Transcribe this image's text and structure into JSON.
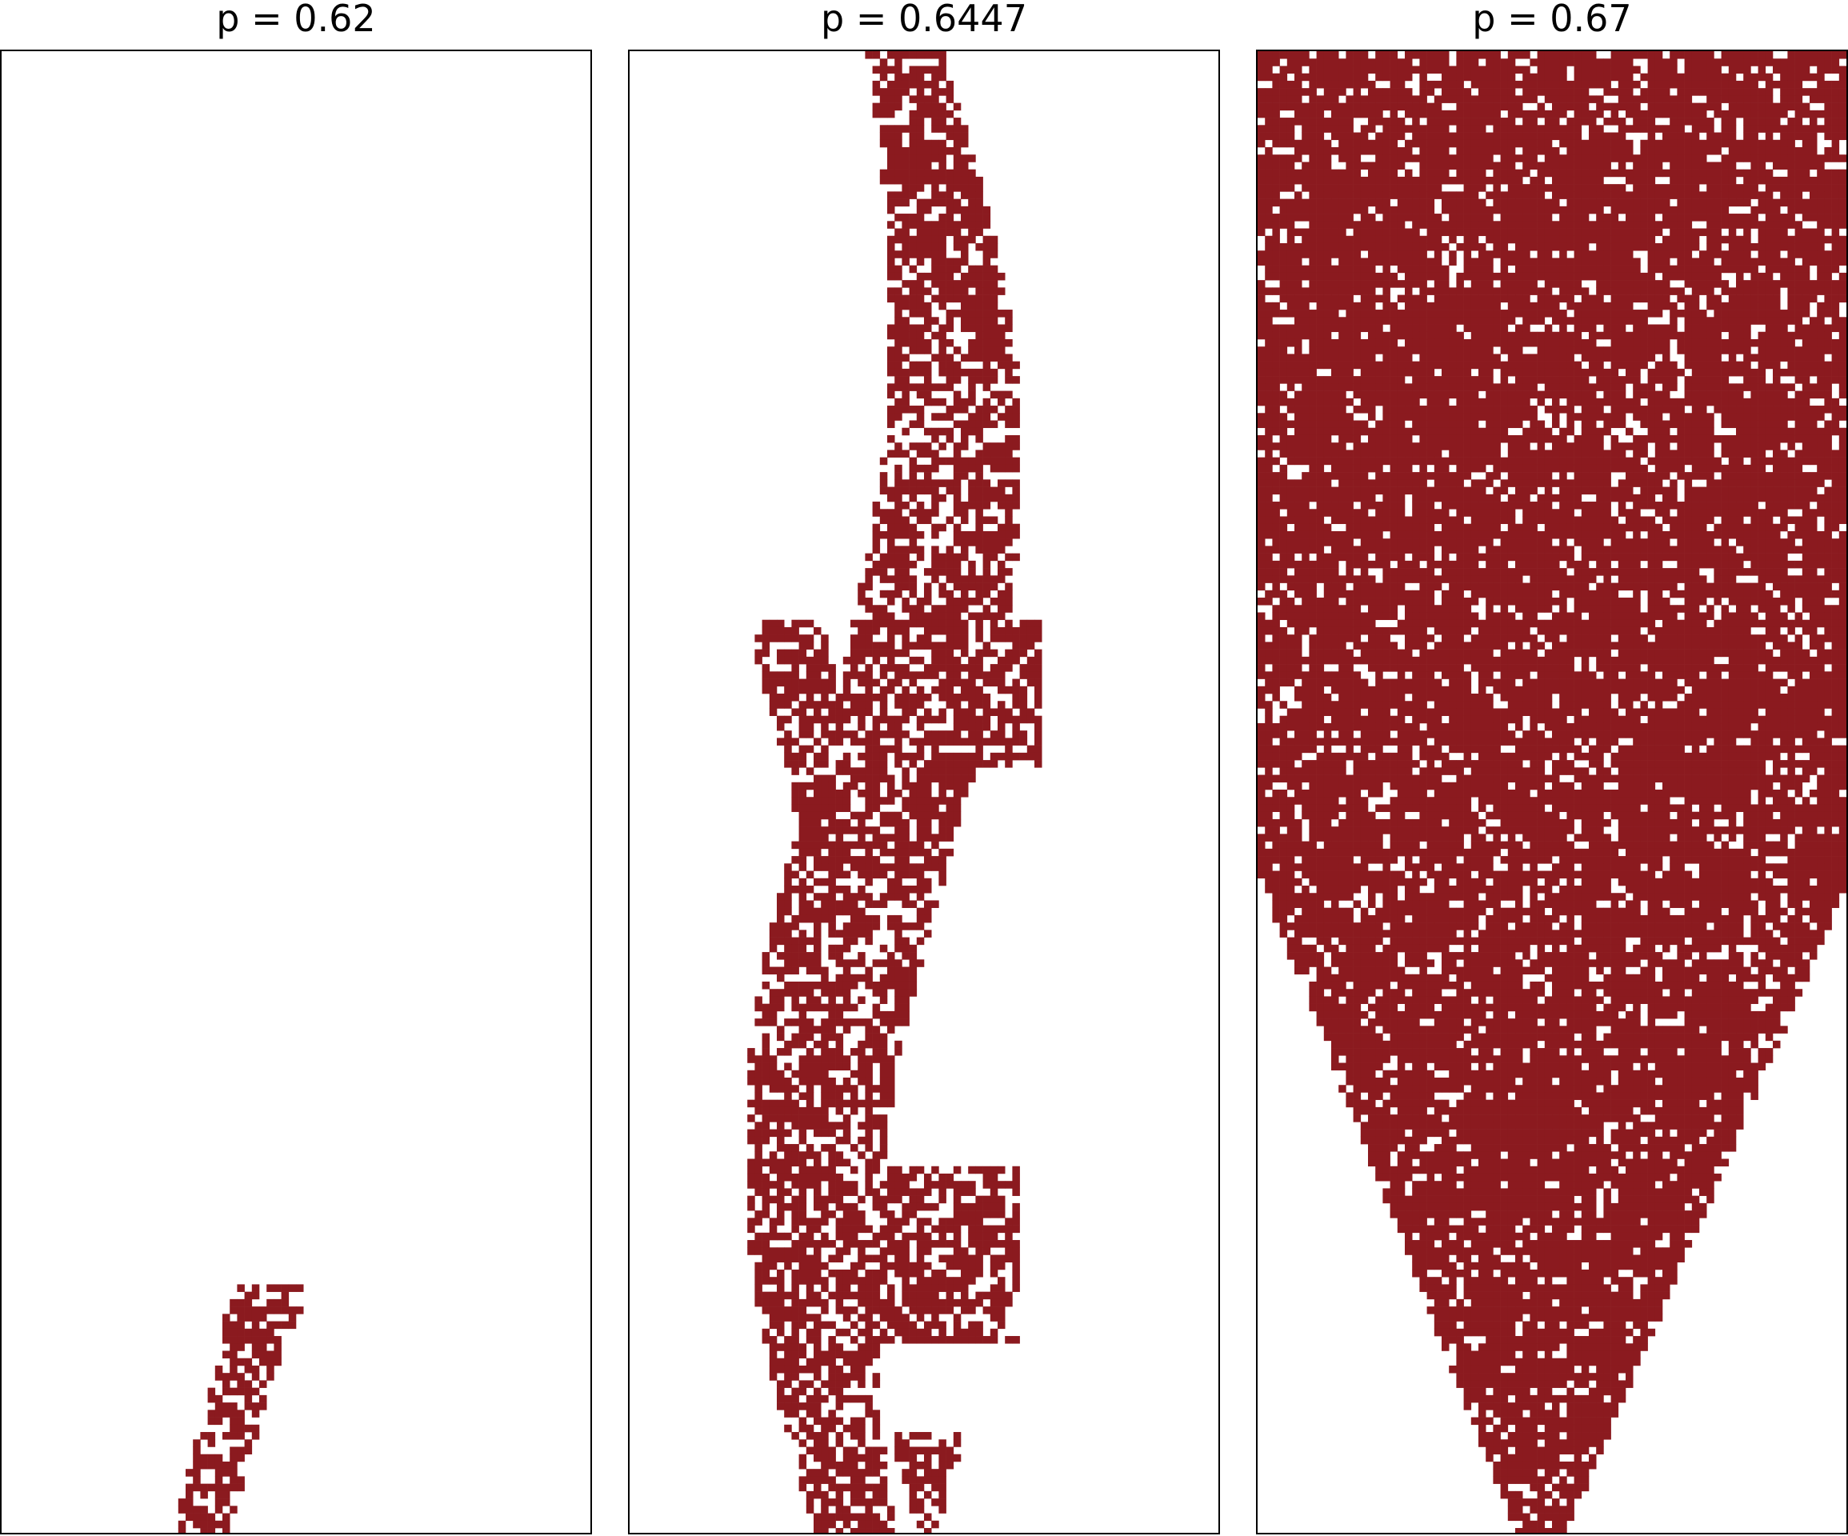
{
  "chart_data": [
    {
      "type": "heatmap",
      "title": "p = 0.62",
      "p": 0.62,
      "color": "#8b1a1f",
      "shape": "small thin cluster near bottom",
      "grid": false
    },
    {
      "type": "heatmap",
      "title": "p = 0.6447",
      "p": 0.6447,
      "color": "#8b1a1f",
      "shape": "branching tall cluster spanning full height",
      "grid": false
    },
    {
      "type": "heatmap",
      "title": "p = 0.67",
      "p": 0.67,
      "color": "#8b1a1f",
      "shape": "dense wide cluster tapering to bottom apex",
      "grid": false
    }
  ]
}
